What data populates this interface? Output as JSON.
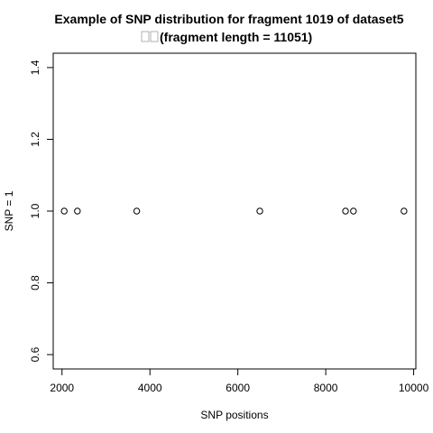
{
  "chart_data": {
    "type": "scatter",
    "title": "Example of SNP distribution for fragment 1019 of dataset5",
    "subtitle_glyphs": "□□",
    "subtitle": "(fragment length = 11051)",
    "xlabel": "SNP positions",
    "ylabel": "SNP = 1",
    "xlim": [
      1800,
      10050
    ],
    "ylim": [
      0.56,
      1.44
    ],
    "xticks": [
      2000,
      4000,
      6000,
      8000,
      10000
    ],
    "xtick_labels": [
      "2000",
      "4000",
      "6000",
      "8000",
      "10000"
    ],
    "yticks": [
      0.6,
      0.8,
      1.0,
      1.2,
      1.4
    ],
    "ytick_labels": [
      "0.6",
      "0.8",
      "1.0",
      "1.2",
      "1.4"
    ],
    "grid": false,
    "legend": "none",
    "marker": "open-circle",
    "x": [
      2050,
      2350,
      3700,
      6500,
      8450,
      8630,
      9780
    ],
    "y": [
      1.0,
      1.0,
      1.0,
      1.0,
      1.0,
      1.0,
      1.0
    ]
  }
}
